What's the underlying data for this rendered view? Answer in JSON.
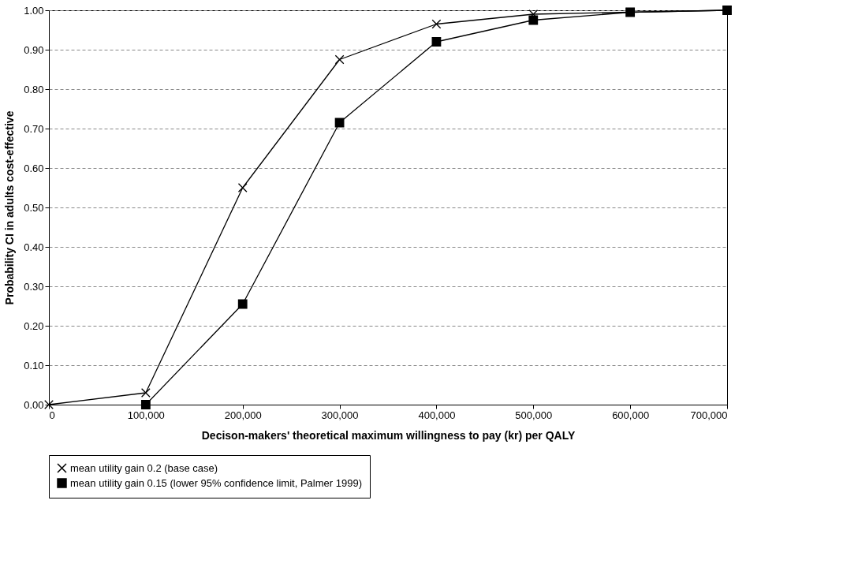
{
  "chart_data": {
    "type": "line",
    "xlabel": "Decison-makers' theoretical maximum willingness to pay (kr) per QALY",
    "ylabel": "Probability CI in adults cost-effective",
    "xlim": [
      0,
      700000
    ],
    "xticks": [
      {
        "value": 0,
        "label": "0"
      },
      {
        "value": 100000,
        "label": "100,000"
      },
      {
        "value": 200000,
        "label": "200,000"
      },
      {
        "value": 300000,
        "label": "300,000"
      },
      {
        "value": 400000,
        "label": "400,000"
      },
      {
        "value": 500000,
        "label": "500,000"
      },
      {
        "value": 600000,
        "label": "600,000"
      },
      {
        "value": 700000,
        "label": "700,000"
      }
    ],
    "ylim": [
      0,
      1
    ],
    "yticks": [
      {
        "value": 0,
        "label": "0.00"
      },
      {
        "value": 0.1,
        "label": "0.10"
      },
      {
        "value": 0.2,
        "label": "0.20"
      },
      {
        "value": 0.3,
        "label": "0.30"
      },
      {
        "value": 0.4,
        "label": "0.40"
      },
      {
        "value": 0.5,
        "label": "0.50"
      },
      {
        "value": 0.6,
        "label": "0.60"
      },
      {
        "value": 0.7,
        "label": "0.70"
      },
      {
        "value": 0.8,
        "label": "0.80"
      },
      {
        "value": 0.9,
        "label": "0.90"
      },
      {
        "value": 1,
        "label": "1.00"
      }
    ],
    "grid": "y",
    "legend": "bottom",
    "line_style": "solid",
    "series": [
      {
        "name": "mean utility gain 0.2 (base case)",
        "color": "#000000",
        "marker": "cross",
        "x": [
          0,
          100000,
          200000,
          300000,
          400000,
          500000,
          600000,
          700000
        ],
        "values": [
          0.0,
          0.03,
          0.55,
          0.875,
          0.965,
          0.99,
          0.995,
          1.0
        ]
      },
      {
        "name": "mean utility gain 0.15 (lower 95% confidence limit, Palmer 1999)",
        "color": "#000000",
        "marker": "square",
        "x": [
          100000,
          200000,
          300000,
          400000,
          500000,
          600000,
          700000
        ],
        "values": [
          0.0,
          0.255,
          0.715,
          0.92,
          0.975,
          0.995,
          1.0
        ]
      }
    ]
  }
}
